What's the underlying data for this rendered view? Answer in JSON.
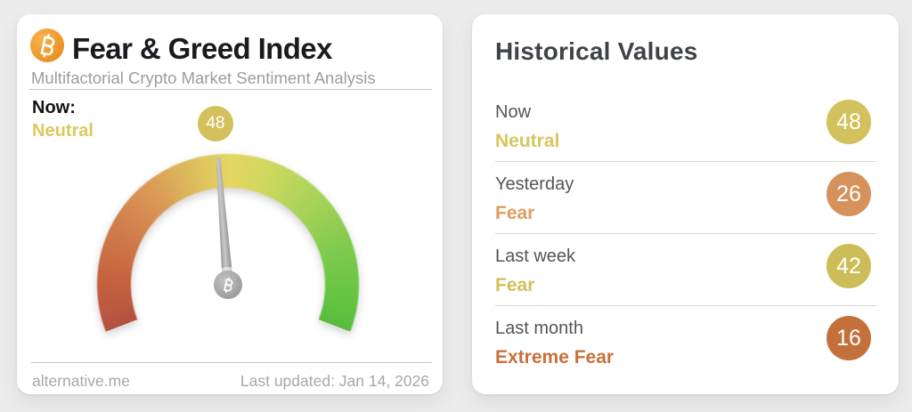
{
  "left_card": {
    "title": "Fear & Greed Index",
    "subtitle": "Multifactorial Crypto Market Sentiment Analysis",
    "now_label": "Now:",
    "now_sentiment": "Neutral",
    "now_sentiment_color": "#dcc85e",
    "badge_value": "48",
    "badge_color": "#d2c15c",
    "footer_source": "alternative.me",
    "footer_updated": "Last updated: Jan 14, 2026"
  },
  "right_card": {
    "title": "Historical Values",
    "rows": [
      {
        "label": "Now",
        "sentiment": "Neutral",
        "value": "48",
        "text_color": "#d9c55c",
        "circle_color": "#d2c15c"
      },
      {
        "label": "Yesterday",
        "sentiment": "Fear",
        "value": "26",
        "text_color": "#dd9d62",
        "circle_color": "#d6925c"
      },
      {
        "label": "Last week",
        "sentiment": "Fear",
        "value": "42",
        "text_color": "#d2bf5a",
        "circle_color": "#cdbd58"
      },
      {
        "label": "Last month",
        "sentiment": "Extreme Fear",
        "value": "16",
        "text_color": "#c8713a",
        "circle_color": "#c3703b"
      }
    ]
  },
  "chart_data": {
    "type": "gauge",
    "title": "Fear & Greed Index",
    "value": 48,
    "sentiment": "Neutral",
    "range": [
      0,
      100
    ],
    "arc_sweep_deg": 222,
    "color_scale_low_to_high": [
      "#b25140",
      "#da9a55",
      "#e4d660",
      "#a6d258",
      "#57ba3a"
    ],
    "needle_color": "#9a9a9a",
    "historical": [
      {
        "period": "Now",
        "sentiment": "Neutral",
        "value": 48
      },
      {
        "period": "Yesterday",
        "sentiment": "Fear",
        "value": 26
      },
      {
        "period": "Last week",
        "sentiment": "Fear",
        "value": 42
      },
      {
        "period": "Last month",
        "sentiment": "Extreme Fear",
        "value": 16
      }
    ]
  }
}
